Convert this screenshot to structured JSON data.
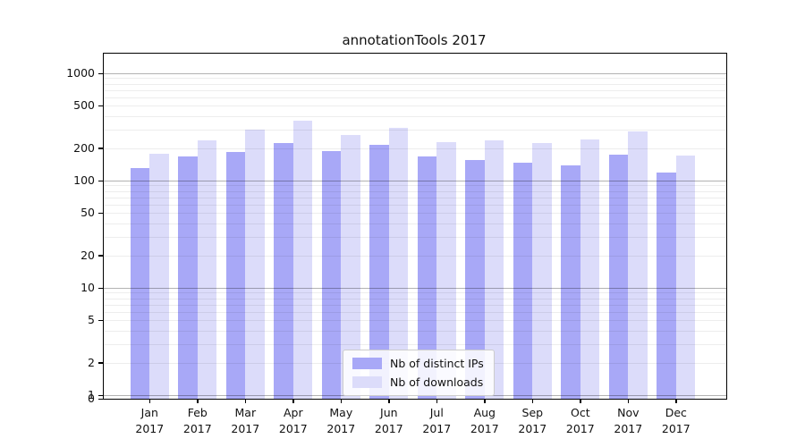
{
  "title": "annotationTools 2017",
  "chart_data": {
    "type": "bar",
    "title": "annotationTools 2017",
    "xlabel": "",
    "ylabel": "",
    "yscale": "log",
    "grid": true,
    "legend_position": "lower center",
    "categories": [
      "Jan",
      "Feb",
      "Mar",
      "Apr",
      "May",
      "Jun",
      "Jul",
      "Aug",
      "Sep",
      "Oct",
      "Nov",
      "Dec"
    ],
    "x_year_label": "2017",
    "y_tick_labels": [
      "1000",
      "500",
      "200",
      "100",
      "50",
      "20",
      "10",
      "5",
      "2",
      "1",
      "0"
    ],
    "y_ticks": [
      1000,
      500,
      200,
      100,
      50,
      20,
      10,
      5,
      2,
      1,
      0
    ],
    "ylim": [
      0,
      1500
    ],
    "series": [
      {
        "name": "Nb of distinct IPs",
        "color": "#a8a8f7",
        "values": [
          132,
          167,
          186,
          225,
          190,
          215,
          167,
          156,
          148,
          138,
          175,
          120
        ]
      },
      {
        "name": "Nb of downloads",
        "color": "#dcdcfa",
        "values": [
          178,
          235,
          300,
          360,
          265,
          310,
          230,
          238,
          223,
          240,
          290,
          172
        ]
      }
    ]
  }
}
